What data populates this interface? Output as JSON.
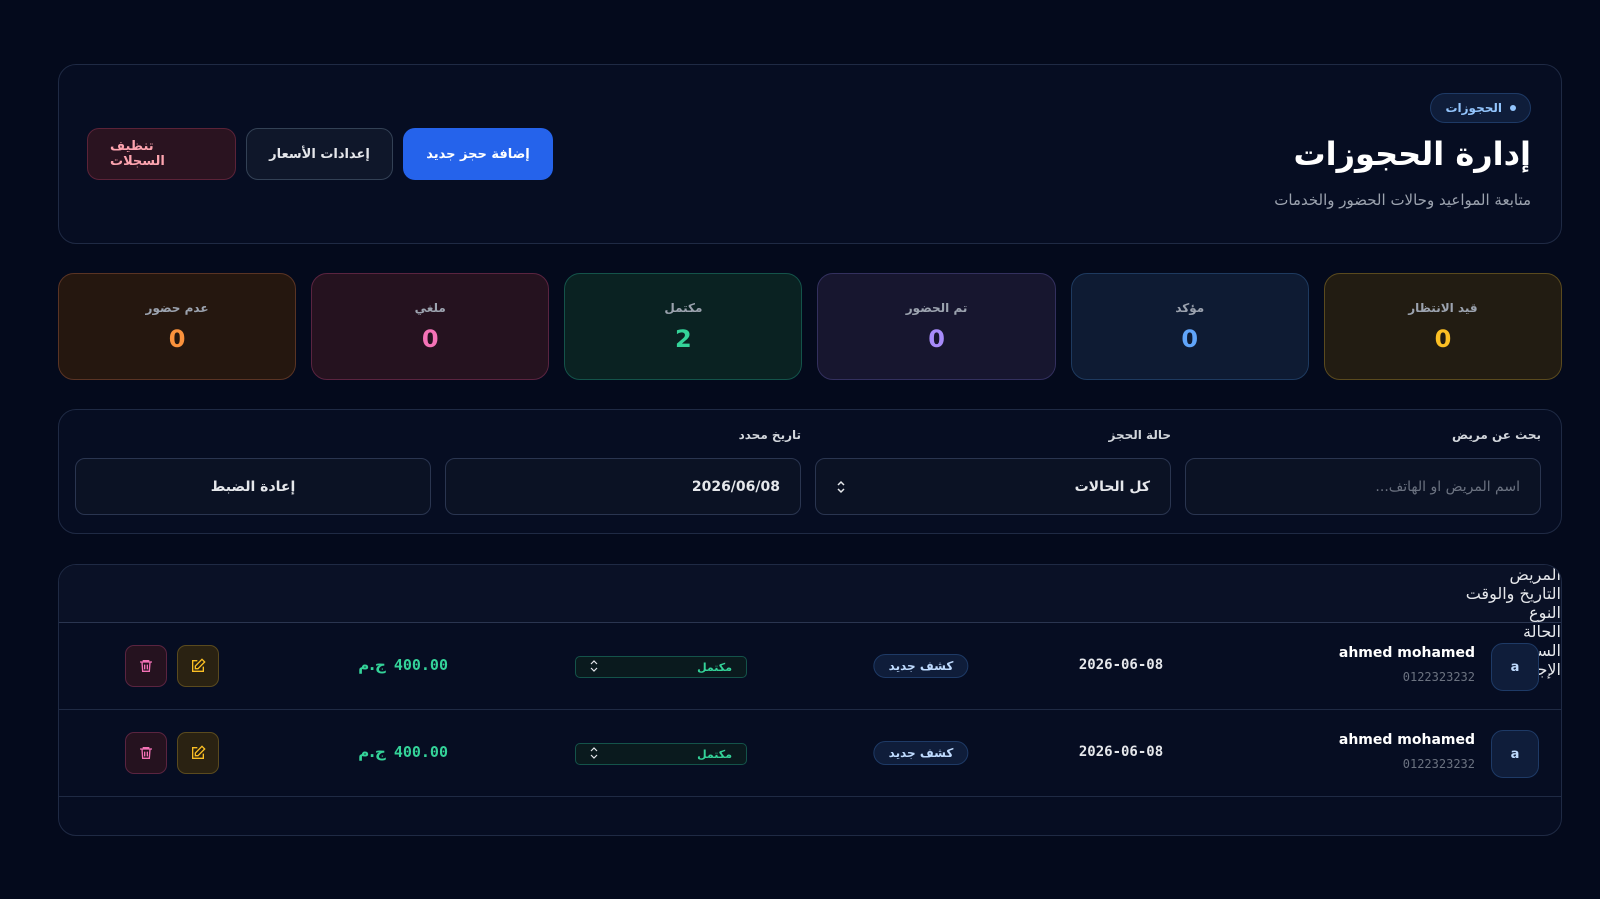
{
  "header": {
    "badge": "الحجوزات",
    "title": "إدارة الحجوزات",
    "subtitle": "متابعة المواعيد وحالات الحضور والخدمات",
    "buttons": [
      "إضافة حجز جديد",
      "إعدادات الأسعار",
      "تنظيف السجلات"
    ]
  },
  "stats": [
    {
      "label": "قيد الانتظار",
      "value": 0
    },
    {
      "label": "مؤكد",
      "value": 0
    },
    {
      "label": "تم الحضور",
      "value": 0
    },
    {
      "label": "مكتمل",
      "value": 2
    },
    {
      "label": "ملغي",
      "value": 0
    },
    {
      "label": "عدم حضور",
      "value": 0
    }
  ],
  "filters": {
    "search_label": "بحث عن مريض",
    "search_placeholder": "اسم المريض او الهاتف...",
    "status_label": "حالة الحجز",
    "status_value": "كل الحالات",
    "date_label": "تاريخ محدد",
    "date_value": "2026/06/08",
    "reset": "إعادة الضبط"
  },
  "table": {
    "headers": [
      "المريض",
      "التاريخ والوقت",
      "النوع",
      "الحالة",
      "السعر",
      "الإجراءات"
    ],
    "rows": [
      {
        "avatar": "a",
        "name": "ahmed mohamed",
        "phone": "0122323232",
        "datetime": "2026-06-08",
        "type": "كشف جديد",
        "status": "مكتمل",
        "price": "400.00",
        "currency": "ج.م"
      },
      {
        "avatar": "a",
        "name": "ahmed mohamed",
        "phone": "0122323232",
        "datetime": "2026-06-08",
        "type": "كشف جديد",
        "status": "مكتمل",
        "price": "400.00",
        "currency": "ج.م"
      }
    ]
  }
}
